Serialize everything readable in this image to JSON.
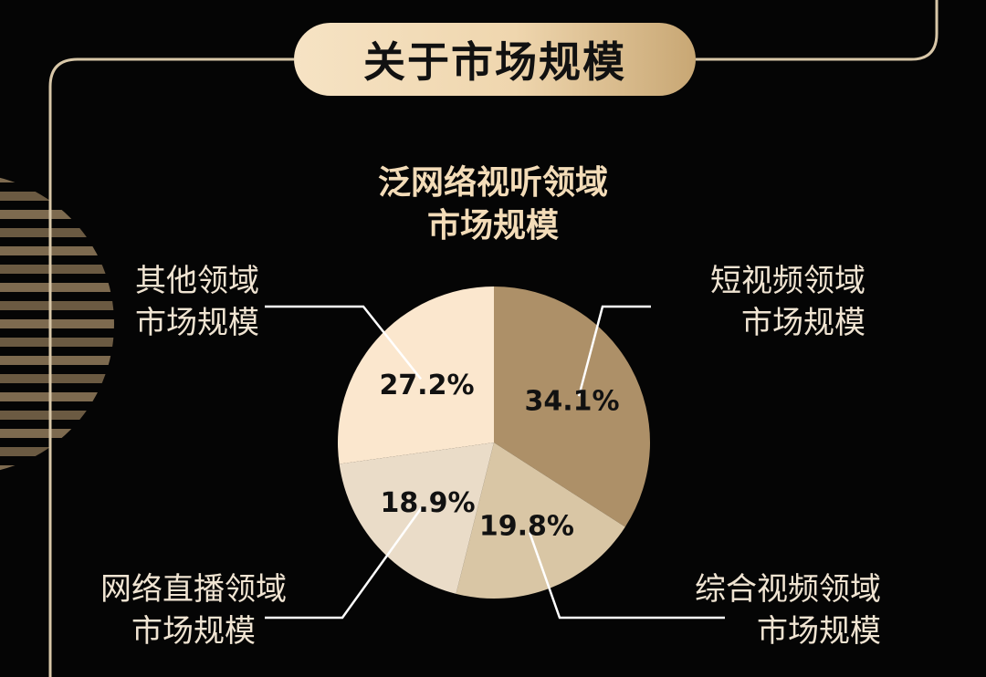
{
  "header": {
    "title": "关于市场规模"
  },
  "colors": {
    "background": "#050505",
    "frame_line": "#d8c7a8",
    "title_pill": "#efd6ae",
    "chart_title": "#f3dcb8",
    "label_text": "#f0e4d2",
    "leader_line": "#ffffff"
  },
  "chart_data": {
    "type": "pie",
    "title": "泛网络视听领域 市场规模",
    "title_lines": [
      "泛网络视听领域",
      "市场规模"
    ],
    "slices": [
      {
        "label": "短视频领域市场规模",
        "label_lines": [
          "短视频领域",
          "市场规模"
        ],
        "value": 34.1,
        "value_label": "34.1%",
        "color": "#ad9068"
      },
      {
        "label": "综合视频领域市场规模",
        "label_lines": [
          "综合视频领域",
          "市场规模"
        ],
        "value": 19.8,
        "value_label": "19.8%",
        "color": "#d9c6a5"
      },
      {
        "label": "网络直播领域市场规模",
        "label_lines": [
          "网络直播领域",
          "市场规模"
        ],
        "value": 18.9,
        "value_label": "18.9%",
        "color": "#eadcc8"
      },
      {
        "label": "其他领域市场规模",
        "label_lines": [
          "其他领域",
          "市场规模"
        ],
        "value": 27.2,
        "value_label": "27.2%",
        "color": "#fbe7ce"
      }
    ],
    "start": "12 o'clock",
    "direction": "clockwise",
    "legend": "none (callout labels)"
  }
}
